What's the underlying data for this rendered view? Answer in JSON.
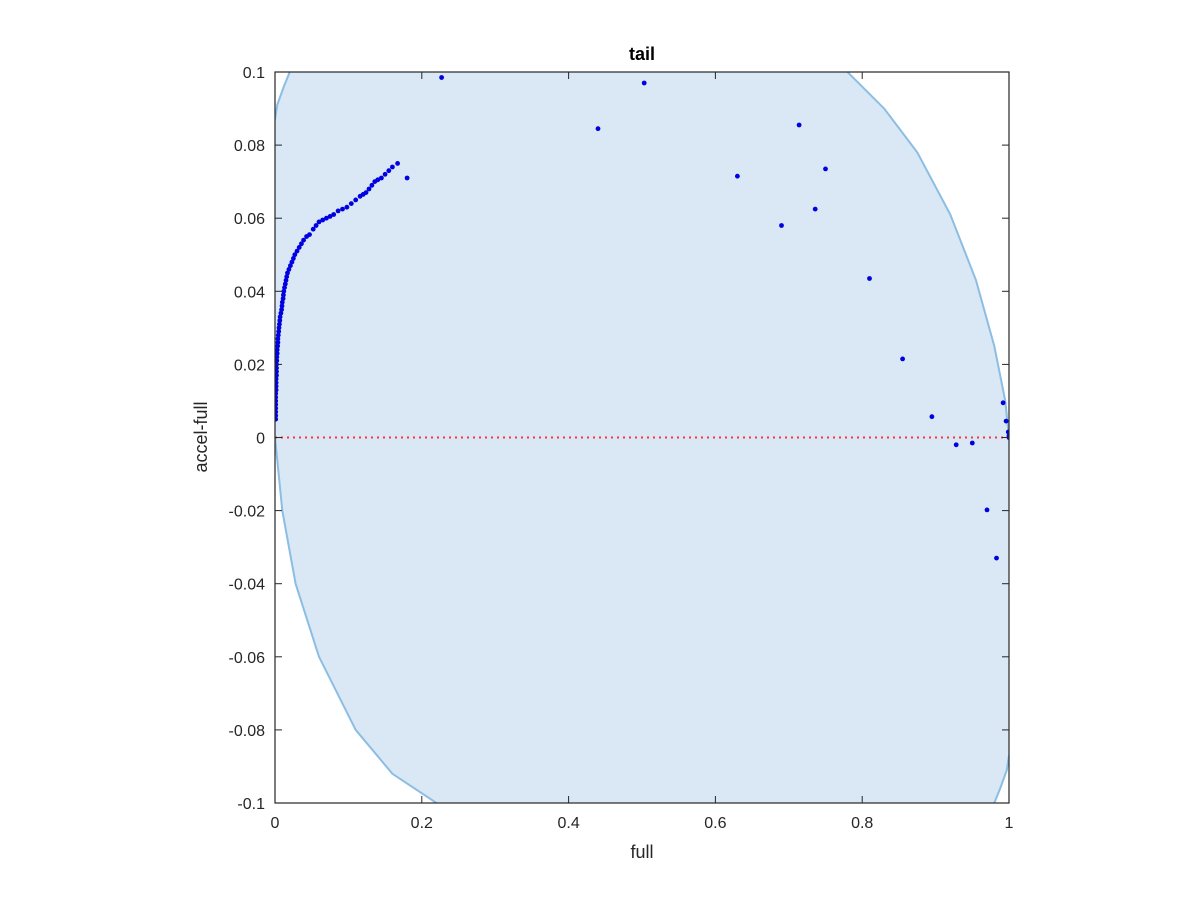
{
  "chart_data": {
    "type": "scatter",
    "title": "tail",
    "xlabel": "full",
    "ylabel": "accel-full",
    "xlim": [
      0,
      1
    ],
    "ylim": [
      -0.1,
      0.1
    ],
    "xticks": [
      "0",
      "0.2",
      "0.4",
      "0.6",
      "0.8",
      "1"
    ],
    "xtick_values": [
      0,
      0.2,
      0.4,
      0.6,
      0.8,
      1
    ],
    "yticks": [
      "-0.1",
      "-0.08",
      "-0.06",
      "-0.04",
      "-0.02",
      "0",
      "0.02",
      "0.04",
      "0.06",
      "0.08",
      "0.1"
    ],
    "ytick_values": [
      -0.1,
      -0.08,
      -0.06,
      -0.04,
      -0.02,
      0,
      0.02,
      0.04,
      0.06,
      0.08,
      0.1
    ],
    "grid": false,
    "colors": {
      "points": "#0000e0",
      "band_fill": "#d9e8f4",
      "band_edge": "#8cbde3",
      "zero_line": "#ff3333",
      "axes": "#262626"
    },
    "band": {
      "left_edge": [
        [
          0.0,
          0.087
        ],
        [
          0.003,
          0.091
        ],
        [
          0.012,
          0.096
        ],
        [
          0.02,
          0.1
        ]
      ],
      "left_edge_lower": [
        [
          0.0,
          0.0
        ],
        [
          0.01,
          -0.02
        ],
        [
          0.028,
          -0.04
        ],
        [
          0.06,
          -0.06
        ],
        [
          0.11,
          -0.08
        ],
        [
          0.16,
          -0.092
        ],
        [
          0.22,
          -0.1
        ]
      ],
      "right_edge_upper": [
        [
          0.78,
          0.1
        ],
        [
          0.83,
          0.09
        ],
        [
          0.875,
          0.078
        ],
        [
          0.92,
          0.061
        ],
        [
          0.955,
          0.043
        ],
        [
          0.98,
          0.025
        ],
        [
          0.995,
          0.01
        ],
        [
          1.0,
          0.0
        ]
      ],
      "right_edge_lower": [
        [
          1.0,
          -0.087
        ],
        [
          0.997,
          -0.091
        ],
        [
          0.988,
          -0.096
        ],
        [
          0.98,
          -0.1
        ]
      ]
    },
    "zero_line": {
      "y": 0,
      "style": "dotted"
    },
    "series": [
      {
        "points": [
          [
            0.001,
            0.005
          ],
          [
            0.001,
            0.006
          ],
          [
            0.001,
            0.007
          ],
          [
            0.001,
            0.008
          ],
          [
            0.001,
            0.009
          ],
          [
            0.001,
            0.01
          ],
          [
            0.001,
            0.011
          ],
          [
            0.001,
            0.012
          ],
          [
            0.0015,
            0.013
          ],
          [
            0.0015,
            0.014
          ],
          [
            0.0015,
            0.015
          ],
          [
            0.0015,
            0.016
          ],
          [
            0.002,
            0.017
          ],
          [
            0.002,
            0.018
          ],
          [
            0.002,
            0.019
          ],
          [
            0.002,
            0.02
          ],
          [
            0.0025,
            0.021
          ],
          [
            0.0025,
            0.022
          ],
          [
            0.003,
            0.023
          ],
          [
            0.003,
            0.024
          ],
          [
            0.0035,
            0.025
          ],
          [
            0.004,
            0.026
          ],
          [
            0.004,
            0.027
          ],
          [
            0.0045,
            0.028
          ],
          [
            0.005,
            0.029
          ],
          [
            0.0055,
            0.03
          ],
          [
            0.006,
            0.031
          ],
          [
            0.0065,
            0.032
          ],
          [
            0.007,
            0.033
          ],
          [
            0.008,
            0.034
          ],
          [
            0.009,
            0.035
          ],
          [
            0.0095,
            0.036
          ],
          [
            0.01,
            0.037
          ],
          [
            0.011,
            0.038
          ],
          [
            0.0115,
            0.039
          ],
          [
            0.012,
            0.04
          ],
          [
            0.013,
            0.041
          ],
          [
            0.014,
            0.042
          ],
          [
            0.015,
            0.043
          ],
          [
            0.016,
            0.044
          ],
          [
            0.017,
            0.045
          ],
          [
            0.019,
            0.046
          ],
          [
            0.021,
            0.047
          ],
          [
            0.023,
            0.048
          ],
          [
            0.025,
            0.049
          ],
          [
            0.027,
            0.05
          ],
          [
            0.03,
            0.051
          ],
          [
            0.033,
            0.052
          ],
          [
            0.036,
            0.053
          ],
          [
            0.039,
            0.054
          ],
          [
            0.043,
            0.055
          ],
          [
            0.047,
            0.0555
          ],
          [
            0.052,
            0.057
          ],
          [
            0.056,
            0.058
          ],
          [
            0.06,
            0.059
          ],
          [
            0.065,
            0.0595
          ],
          [
            0.07,
            0.06
          ],
          [
            0.075,
            0.0605
          ],
          [
            0.08,
            0.061
          ],
          [
            0.086,
            0.062
          ],
          [
            0.092,
            0.0625
          ],
          [
            0.098,
            0.063
          ],
          [
            0.104,
            0.064
          ],
          [
            0.11,
            0.065
          ],
          [
            0.116,
            0.066
          ],
          [
            0.12,
            0.0665
          ],
          [
            0.124,
            0.067
          ],
          [
            0.128,
            0.068
          ],
          [
            0.132,
            0.069
          ],
          [
            0.136,
            0.07
          ],
          [
            0.14,
            0.0705
          ],
          [
            0.145,
            0.071
          ],
          [
            0.15,
            0.072
          ],
          [
            0.155,
            0.073
          ],
          [
            0.16,
            0.074
          ],
          [
            0.167,
            0.075
          ],
          [
            0.18,
            0.071
          ],
          [
            0.227,
            0.0985
          ],
          [
            0.44,
            0.0845
          ],
          [
            0.503,
            0.097
          ],
          [
            0.63,
            0.0715
          ],
          [
            0.69,
            0.058
          ],
          [
            0.714,
            0.0855
          ],
          [
            0.736,
            0.0625
          ],
          [
            0.75,
            0.0735
          ],
          [
            0.81,
            0.0435
          ],
          [
            0.855,
            0.0215
          ],
          [
            0.895,
            0.0057
          ],
          [
            0.928,
            -0.002
          ],
          [
            0.95,
            -0.0015
          ],
          [
            0.97,
            -0.0198
          ],
          [
            0.983,
            -0.033
          ],
          [
            0.992,
            0.0095
          ],
          [
            0.996,
            0.0045
          ],
          [
            0.999,
            0.0015
          ],
          [
            1.0,
            0.0005
          ],
          [
            1.0,
            0.0
          ]
        ]
      }
    ]
  }
}
